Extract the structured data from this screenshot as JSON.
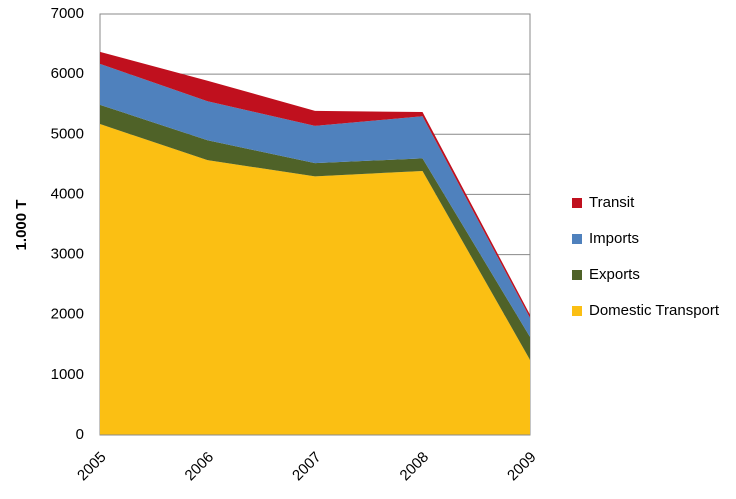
{
  "chart_data": {
    "type": "stacked-area",
    "y_label": "1.000 T",
    "categories": [
      "2005",
      "2006",
      "2007",
      "2008",
      "2009"
    ],
    "series": [
      {
        "name": "Domestic Transport",
        "color": "#fbbf13",
        "values": [
          5170,
          4570,
          4300,
          4390,
          1250
        ]
      },
      {
        "name": "Exports",
        "color": "#4f6228",
        "values": [
          320,
          330,
          220,
          210,
          380
        ]
      },
      {
        "name": "Imports",
        "color": "#4f81bd",
        "values": [
          680,
          650,
          620,
          700,
          320
        ]
      },
      {
        "name": "Transit",
        "color": "#c0101e",
        "values": [
          200,
          340,
          250,
          70,
          50
        ]
      }
    ],
    "ylim": [
      0,
      7000
    ],
    "yticks": [
      0,
      1000,
      2000,
      3000,
      4000,
      5000,
      6000,
      7000
    ],
    "grid": true
  }
}
